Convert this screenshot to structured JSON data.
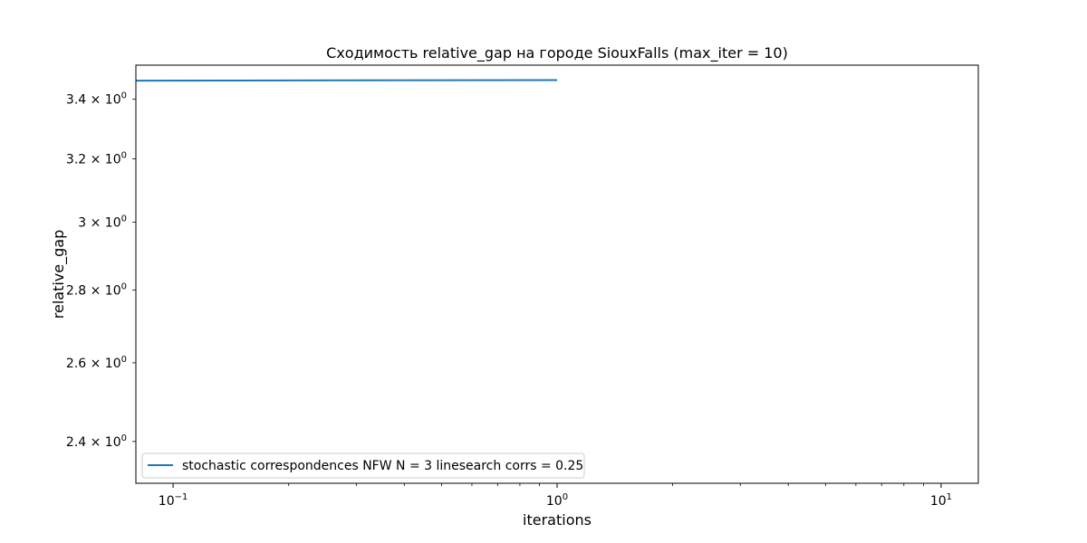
{
  "chart_data": {
    "type": "line",
    "title": "Сходимость relative_gap на городе SiouxFalls  (max_iter = 10)",
    "xlabel": "iterations",
    "ylabel": "relative_gap",
    "xscale": "log",
    "yscale": "log",
    "xlim": [
      0.08,
      12.5
    ],
    "ylim": [
      2.3,
      3.52
    ],
    "x_ticks": [
      {
        "value": 0.1,
        "base": "10",
        "exp": "−1"
      },
      {
        "value": 1,
        "base": "10",
        "exp": "0"
      },
      {
        "value": 10,
        "base": "10",
        "exp": "1"
      }
    ],
    "x_minor_ticks": [
      0.2,
      0.3,
      0.4,
      0.5,
      0.6,
      0.7,
      0.8,
      0.9,
      2,
      3,
      4,
      5,
      6,
      7,
      8,
      9
    ],
    "y_ticks": [
      {
        "value": 2.4,
        "mantissa": "2.4",
        "base": "10",
        "exp": "0"
      },
      {
        "value": 2.6,
        "mantissa": "2.6",
        "base": "10",
        "exp": "0"
      },
      {
        "value": 2.8,
        "mantissa": "2.8",
        "base": "10",
        "exp": "0"
      },
      {
        "value": 3.0,
        "mantissa": "3",
        "base": "10",
        "exp": "0"
      },
      {
        "value": 3.2,
        "mantissa": "3.2",
        "base": "10",
        "exp": "0"
      },
      {
        "value": 3.4,
        "mantissa": "3.4",
        "base": "10",
        "exp": "0"
      }
    ],
    "series": [
      {
        "name": "stochastic correspondences NFW N = 3 linesearch corrs = 0.25",
        "color": "#1f77b4",
        "x": [
          0.08,
          1
        ],
        "y": [
          3.465,
          3.467
        ]
      }
    ],
    "legend_position": "lower-left",
    "grid": false
  }
}
